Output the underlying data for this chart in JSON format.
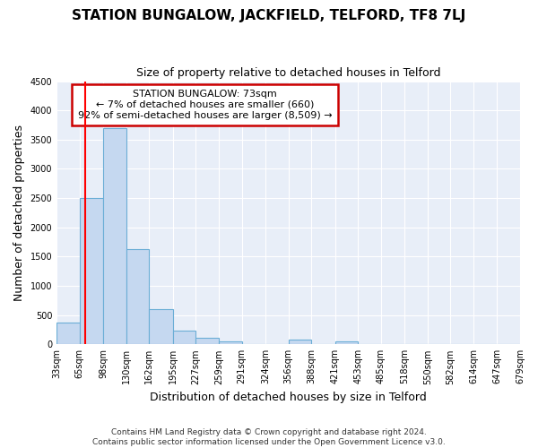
{
  "title": "STATION BUNGALOW, JACKFIELD, TELFORD, TF8 7LJ",
  "subtitle": "Size of property relative to detached houses in Telford",
  "xlabel": "Distribution of detached houses by size in Telford",
  "ylabel": "Number of detached properties",
  "bin_labels": [
    "33sqm",
    "65sqm",
    "98sqm",
    "130sqm",
    "162sqm",
    "195sqm",
    "227sqm",
    "259sqm",
    "291sqm",
    "324sqm",
    "356sqm",
    "388sqm",
    "421sqm",
    "453sqm",
    "485sqm",
    "518sqm",
    "550sqm",
    "582sqm",
    "614sqm",
    "647sqm",
    "679sqm"
  ],
  "bar_values": [
    380,
    2500,
    3700,
    1630,
    600,
    240,
    105,
    50,
    0,
    0,
    80,
    0,
    50,
    0,
    0,
    0,
    0,
    0,
    0,
    0
  ],
  "bar_color": "#c5d8f0",
  "bar_edge_color": "#6baed6",
  "red_line_x": 73,
  "bin_edges": [
    33,
    65,
    98,
    130,
    162,
    195,
    227,
    259,
    291,
    324,
    356,
    388,
    421,
    453,
    485,
    518,
    550,
    582,
    614,
    647,
    679
  ],
  "annotation_title": "STATION BUNGALOW: 73sqm",
  "annotation_line1": "← 7% of detached houses are smaller (660)",
  "annotation_line2": "92% of semi-detached houses are larger (8,509) →",
  "annotation_box_color": "#ffffff",
  "annotation_box_edge_color": "#cc0000",
  "footer_line1": "Contains HM Land Registry data © Crown copyright and database right 2024.",
  "footer_line2": "Contains public sector information licensed under the Open Government Licence v3.0.",
  "ylim": [
    0,
    4500
  ],
  "fig_bg_color": "#ffffff",
  "plot_bg_color": "#e8eef8"
}
